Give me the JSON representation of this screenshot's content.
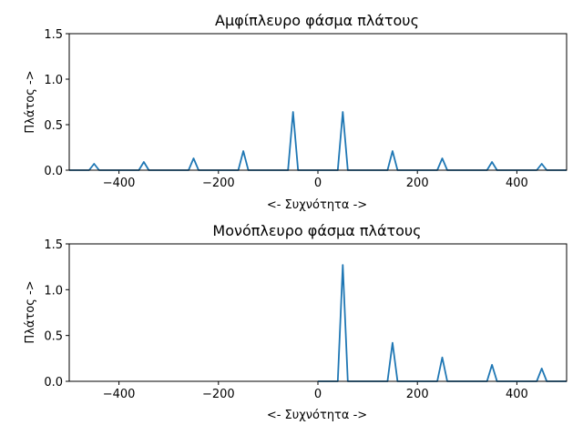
{
  "chart_data": [
    {
      "type": "line",
      "title": "Αμφίπλευρο φάσμα πλάτους",
      "xlabel": "<- Συχνότητα ->",
      "ylabel": "Πλάτος ->",
      "xlim": [
        -500,
        500
      ],
      "ylim": [
        0,
        1.5
      ],
      "xticks": [
        -400,
        -200,
        0,
        200,
        400
      ],
      "xtick_labels": [
        "−400",
        "−200",
        "0",
        "200",
        "400"
      ],
      "yticks": [
        0,
        0.5,
        1,
        1.5
      ],
      "ytick_labels": [
        "0.0",
        "0.5",
        "1.0",
        "1.5"
      ],
      "grid": false,
      "color": "#1f77b4",
      "x": [
        -500,
        -460,
        -450,
        -440,
        -360,
        -350,
        -340,
        -260,
        -250,
        -240,
        -160,
        -150,
        -140,
        -60,
        -50,
        -40,
        40,
        50,
        60,
        140,
        150,
        160,
        240,
        250,
        260,
        340,
        350,
        360,
        440,
        450,
        460,
        500
      ],
      "y": [
        0,
        0,
        0.07,
        0,
        0,
        0.09,
        0,
        0,
        0.13,
        0,
        0,
        0.21,
        0,
        0,
        0.64,
        0,
        0,
        0.64,
        0,
        0,
        0.21,
        0,
        0,
        0.13,
        0,
        0,
        0.09,
        0,
        0,
        0.07,
        0,
        0
      ]
    },
    {
      "type": "line",
      "title": "Μονόπλευρο φάσμα πλάτους",
      "xlabel": "<- Συχνότητα ->",
      "ylabel": "Πλάτος ->",
      "xlim": [
        -500,
        500
      ],
      "ylim": [
        0,
        1.5
      ],
      "xticks": [
        -400,
        -200,
        0,
        200,
        400
      ],
      "xtick_labels": [
        "−400",
        "−200",
        "0",
        "200",
        "400"
      ],
      "yticks": [
        0,
        0.5,
        1,
        1.5
      ],
      "ytick_labels": [
        "0.0",
        "0.5",
        "1.0",
        "1.5"
      ],
      "grid": false,
      "color": "#1f77b4",
      "x": [
        0,
        40,
        50,
        60,
        140,
        150,
        160,
        240,
        250,
        260,
        340,
        350,
        360,
        440,
        450,
        460,
        500
      ],
      "y": [
        0,
        0,
        1.27,
        0,
        0,
        0.42,
        0,
        0,
        0.26,
        0,
        0,
        0.18,
        0,
        0,
        0.14,
        0,
        0
      ]
    }
  ]
}
